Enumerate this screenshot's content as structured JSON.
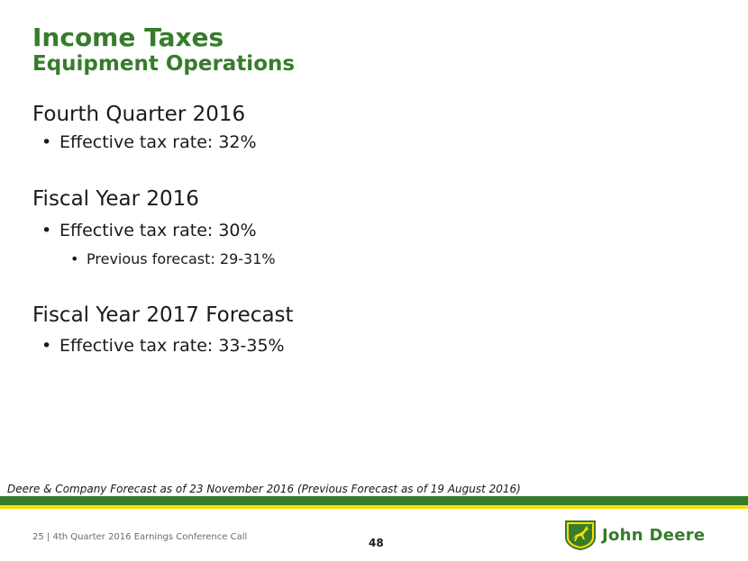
{
  "title": "Income Taxes",
  "subtitle": "Equipment Operations",
  "sections": [
    {
      "heading": "Fourth Quarter 2016",
      "bullet": "Effective tax rate: 32%"
    },
    {
      "heading": "Fiscal Year 2016",
      "bullet": "Effective tax rate: 30%",
      "sub_bullet": "Previous forecast: 29-31%"
    },
    {
      "heading": "Fiscal Year 2017 Forecast",
      "bullet": "Effective tax rate: 33-35%"
    }
  ],
  "footnote": "Deere & Company Forecast as of 23 November 2016 (Previous Forecast as of 19 August 2016)",
  "footer": {
    "text": "25  |  4th Quarter 2016 Earnings Conference Call",
    "page_number": "48"
  },
  "logo": {
    "icon": "leaping-deer-icon",
    "text": "John Deere"
  },
  "colors": {
    "brand_green": "#367c2b",
    "brand_yellow": "#ffde00"
  }
}
